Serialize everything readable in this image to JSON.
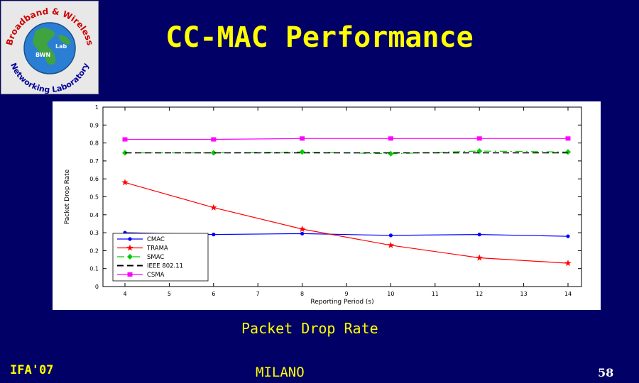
{
  "slide": {
    "title": "CC-MAC Performance",
    "caption": "Packet Drop Rate",
    "footer_left": "IFA'07",
    "footer_center": "MILANO",
    "page_number": "58"
  },
  "logo": {
    "text_top": "Broadband & Wireless",
    "text_bottom": "Networking Laboratory",
    "center_left": "BWN",
    "center_right": "Lab"
  },
  "colors": {
    "background": "#000066",
    "title": "#ffff00",
    "CMAC": "#0000ff",
    "TRAMA": "#ff0000",
    "SMAC": "#00cc00",
    "IEEE": "#000000",
    "CSMA": "#ff00ff"
  },
  "chart_data": {
    "type": "line",
    "title": "",
    "xlabel": "Reporting Period (s)",
    "ylabel": "Packet Drop Rate",
    "xlim": [
      4,
      14
    ],
    "ylim": [
      0,
      1
    ],
    "xticks": [
      4,
      5,
      6,
      7,
      8,
      9,
      10,
      11,
      12,
      13,
      14
    ],
    "yticks": [
      0,
      0.1,
      0.2,
      0.3,
      0.4,
      0.5,
      0.6,
      0.7,
      0.8,
      0.9,
      1
    ],
    "grid": false,
    "legend": "bottom-left",
    "x": [
      4,
      6,
      8,
      10,
      12,
      14
    ],
    "series": [
      {
        "name": "CMAC",
        "values": [
          0.3,
          0.29,
          0.295,
          0.285,
          0.29,
          0.28
        ],
        "color": "#0000ff",
        "marker": "circle",
        "dash": "solid"
      },
      {
        "name": "TRAMA",
        "values": [
          0.58,
          0.44,
          0.32,
          0.23,
          0.16,
          0.13
        ],
        "color": "#ff0000",
        "marker": "star",
        "dash": "solid"
      },
      {
        "name": "SMAC",
        "values": [
          0.745,
          0.745,
          0.75,
          0.74,
          0.755,
          0.75
        ],
        "color": "#00cc00",
        "marker": "diamond",
        "dash": "dashdot"
      },
      {
        "name": "IEEE 802.11",
        "values": [
          0.745,
          0.745,
          0.745,
          0.745,
          0.745,
          0.745
        ],
        "color": "#000000",
        "marker": "none",
        "dash": "dashed"
      },
      {
        "name": "CSMA",
        "values": [
          0.82,
          0.82,
          0.825,
          0.825,
          0.825,
          0.825
        ],
        "color": "#ff00ff",
        "marker": "square",
        "dash": "solid"
      }
    ]
  }
}
